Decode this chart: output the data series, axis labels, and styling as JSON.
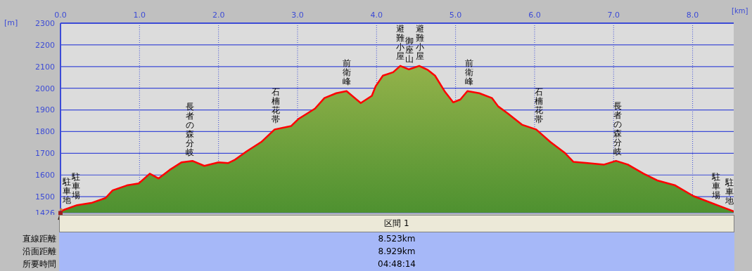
{
  "chart_data": {
    "type": "area",
    "xlabel": "[km]",
    "ylabel": "[m]",
    "xlim": [
      0,
      8.52
    ],
    "ylim": [
      1426,
      2300
    ],
    "xticks": [
      {
        "value": 0,
        "label": "0.0"
      },
      {
        "value": 1,
        "label": "1.0"
      },
      {
        "value": 2,
        "label": "2.0"
      },
      {
        "value": 3,
        "label": "3.0"
      },
      {
        "value": 4,
        "label": "4.0"
      },
      {
        "value": 5,
        "label": "5.0"
      },
      {
        "value": 6,
        "label": "6.0"
      },
      {
        "value": 7,
        "label": "7.0"
      },
      {
        "value": 8,
        "label": "8.0"
      }
    ],
    "yticks": [
      1426,
      1500,
      1600,
      1700,
      1800,
      1900,
      2000,
      2100,
      2200,
      2300
    ],
    "grid": true,
    "legend": false,
    "x": [
      0,
      0.04,
      0.21,
      0.39,
      0.57,
      0.66,
      0.84,
      0.99,
      1.13,
      1.24,
      1.38,
      1.53,
      1.67,
      1.82,
      2.0,
      2.12,
      2.21,
      2.36,
      2.54,
      2.71,
      2.92,
      3.01,
      3.22,
      3.34,
      3.49,
      3.62,
      3.8,
      3.94,
      3.99,
      4.08,
      4.21,
      4.3,
      4.41,
      4.54,
      4.65,
      4.74,
      4.86,
      4.97,
      5.06,
      5.15,
      5.3,
      5.46,
      5.54,
      5.66,
      5.84,
      6.02,
      6.2,
      6.38,
      6.49,
      6.67,
      6.88,
      7.03,
      7.18,
      7.38,
      7.56,
      7.78,
      8.01,
      8.31,
      8.52
    ],
    "series": [
      {
        "color": "#ff0000",
        "values": [
          1429,
          1439,
          1461,
          1471,
          1494,
          1529,
          1552,
          1561,
          1606,
          1584,
          1623,
          1658,
          1665,
          1642,
          1658,
          1655,
          1671,
          1710,
          1752,
          1810,
          1826,
          1858,
          1906,
          1955,
          1977,
          1987,
          1932,
          1965,
          2010,
          2058,
          2074,
          2103,
          2087,
          2103,
          2084,
          2058,
          1987,
          1935,
          1948,
          1987,
          1977,
          1955,
          1916,
          1884,
          1832,
          1810,
          1752,
          1703,
          1661,
          1655,
          1648,
          1665,
          1648,
          1606,
          1574,
          1552,
          1503,
          1461,
          1432
        ]
      }
    ],
    "annotations": [
      {
        "text": "駐車地",
        "x": 0.08,
        "y": 1440
      },
      {
        "text": "駐車場",
        "x": 0.2,
        "y": 1460
      },
      {
        "text": "長者の森分岐",
        "x": 1.64,
        "y": 1660
      },
      {
        "text": "石楠花帯",
        "x": 2.72,
        "y": 1812
      },
      {
        "text": "前衛峰",
        "x": 3.62,
        "y": 1987
      },
      {
        "text": "避難小屋",
        "x": 4.3,
        "y": 2103
      },
      {
        "text": "御座山",
        "x": 4.42,
        "y": 2090
      },
      {
        "text": "避難小屋",
        "x": 4.55,
        "y": 2103
      },
      {
        "text": "前衛峰",
        "x": 5.17,
        "y": 1987
      },
      {
        "text": "石楠花帯",
        "x": 6.05,
        "y": 1810
      },
      {
        "text": "長者の森分岐",
        "x": 7.05,
        "y": 1662
      },
      {
        "text": "駐車場",
        "x": 8.3,
        "y": 1462
      },
      {
        "text": "駐車地",
        "x": 8.47,
        "y": 1436
      },
      "区間 1",
      "直線距離",
      "8.523km",
      "沿面距離",
      "8.929km",
      "所要時間",
      "04:48:14"
    ]
  }
}
